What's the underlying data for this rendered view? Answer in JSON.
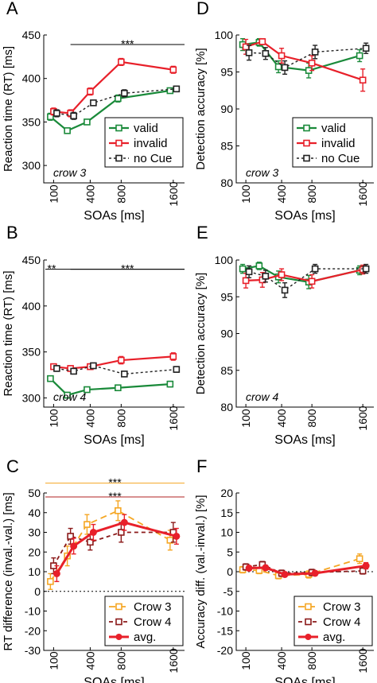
{
  "colors": {
    "valid": "#1a8a3a",
    "invalid": "#e8202a",
    "no_cue": "#222222",
    "crow3": "#f5a623",
    "crow4": "#8b1a1a",
    "avg": "#e8202a",
    "sig_orange": "#f5a623",
    "sig_red": "#b22222"
  },
  "chart_data": [
    {
      "panel": "A",
      "type": "line",
      "ylabel": "Reaction time (RT) [ms]",
      "xlabel": "SOAs [ms]",
      "x": [
        100,
        200,
        400,
        800,
        1600
      ],
      "xticks": [
        100,
        400,
        800,
        1600
      ],
      "ylim": [
        280,
        450
      ],
      "yticks": [
        300,
        350,
        400,
        450
      ],
      "annotation": "crow 3",
      "significance": [
        {
          "label": "***",
          "from": 200,
          "to": 1600,
          "y": 439,
          "color": "#000000"
        }
      ],
      "legend": [
        "valid",
        "invalid",
        "no Cue"
      ],
      "series": [
        {
          "name": "valid",
          "values": [
            356,
            340,
            350,
            377,
            386
          ],
          "err": [
            4,
            3,
            3,
            4,
            3
          ]
        },
        {
          "name": "invalid",
          "values": [
            362,
            360,
            385,
            419,
            410
          ],
          "err": [
            4,
            4,
            4,
            4,
            4
          ]
        },
        {
          "name": "no Cue",
          "values": [
            360,
            357,
            372,
            383,
            388
          ],
          "err": [
            4,
            4,
            3,
            4,
            3
          ]
        }
      ]
    },
    {
      "panel": "D",
      "type": "line",
      "ylabel": "Detection accuracy [%]",
      "xlabel": "SOAs [ms]",
      "x": [
        100,
        200,
        400,
        800,
        1600
      ],
      "xticks": [
        100,
        400,
        800,
        1600
      ],
      "ylim": [
        80,
        100
      ],
      "yticks": [
        80,
        85,
        90,
        95,
        100
      ],
      "annotation": "crow 3",
      "legend": [
        "valid",
        "invalid",
        "no Cue"
      ],
      "series": [
        {
          "name": "valid",
          "values": [
            98.7,
            99.0,
            95.7,
            95.2,
            97.2
          ],
          "err": [
            0.8,
            0.5,
            0.8,
            1.0,
            0.8
          ]
        },
        {
          "name": "invalid",
          "values": [
            98.4,
            99.1,
            97.2,
            96.2,
            93.9
          ],
          "err": [
            1.0,
            0.4,
            1.0,
            1.0,
            1.5
          ]
        },
        {
          "name": "no Cue",
          "values": [
            97.6,
            97.5,
            95.6,
            97.7,
            98.2
          ],
          "err": [
            1.0,
            0.8,
            0.9,
            0.9,
            0.7
          ]
        }
      ]
    },
    {
      "panel": "B",
      "type": "line",
      "ylabel": "Reaction time (RT) [ms]",
      "xlabel": "SOAs [ms]",
      "x": [
        100,
        200,
        400,
        800,
        1600
      ],
      "xticks": [
        100,
        400,
        800,
        1600
      ],
      "ylim": [
        290,
        450
      ],
      "yticks": [
        300,
        350,
        400,
        450
      ],
      "annotation": "crow 4",
      "significance": [
        {
          "label": "**",
          "from": 100,
          "to": 200,
          "y": 440,
          "color": "#000000"
        },
        {
          "label": "***",
          "from": 200,
          "to": 1600,
          "y": 440,
          "color": "#000000"
        }
      ],
      "series": [
        {
          "name": "valid",
          "values": [
            321,
            303,
            309,
            311,
            315
          ],
          "err": [
            3,
            3,
            2,
            3,
            3
          ]
        },
        {
          "name": "invalid",
          "values": [
            334,
            332,
            334,
            341,
            345
          ],
          "err": [
            3,
            3,
            3,
            4,
            4
          ]
        },
        {
          "name": "no Cue",
          "values": [
            332,
            329,
            335,
            326,
            331
          ],
          "err": [
            3,
            3,
            3,
            3,
            3
          ]
        }
      ]
    },
    {
      "panel": "E",
      "type": "line",
      "ylabel": "Detection accuracy [%]",
      "xlabel": "SOAs [ms]",
      "x": [
        100,
        200,
        400,
        800,
        1600
      ],
      "xticks": [
        100,
        400,
        800,
        1600
      ],
      "ylim": [
        80,
        100
      ],
      "yticks": [
        80,
        85,
        90,
        95,
        100
      ],
      "annotation": "crow 4",
      "series": [
        {
          "name": "valid",
          "values": [
            98.8,
            99.2,
            97.7,
            97.0,
            98.6
          ],
          "err": [
            0.6,
            0.5,
            0.8,
            0.9,
            0.6
          ]
        },
        {
          "name": "invalid",
          "values": [
            97.2,
            97.3,
            98.0,
            97.1,
            98.7
          ],
          "err": [
            1.0,
            1.0,
            0.8,
            0.9,
            0.6
          ]
        },
        {
          "name": "no Cue",
          "values": [
            98.4,
            97.8,
            95.9,
            98.8,
            98.8
          ],
          "err": [
            0.8,
            0.8,
            1.0,
            0.6,
            0.6
          ]
        }
      ]
    },
    {
      "panel": "C",
      "type": "line",
      "ylabel": "RT difference (inval.-val.) [ms]",
      "xlabel": "SOAs [ms]",
      "x": [
        100,
        200,
        400,
        800,
        1600
      ],
      "xticks": [
        100,
        400,
        800,
        1600
      ],
      "ylim": [
        -30,
        50
      ],
      "yticks": [
        -30,
        -20,
        -10,
        0,
        10,
        20,
        30,
        40,
        50
      ],
      "zero_line": true,
      "significance": [
        {
          "label": "***",
          "from": 100,
          "to": 1600,
          "y": 55,
          "color": "#f5a623"
        },
        {
          "label": "***",
          "from": 100,
          "to": 1600,
          "y": 48,
          "color": "#b22222"
        }
      ],
      "legend": [
        "Crow 3",
        "Crow 4",
        "avg."
      ],
      "series": [
        {
          "name": "Crow 3",
          "values": [
            5,
            18,
            34,
            41,
            26
          ],
          "err": [
            4,
            5,
            5,
            5,
            5
          ]
        },
        {
          "name": "Crow 4",
          "values": [
            13,
            28,
            25,
            30,
            30
          ],
          "err": [
            4,
            4,
            4,
            5,
            5
          ]
        },
        {
          "name": "avg.",
          "values": [
            9,
            23,
            30,
            35,
            28
          ],
          "err": [
            4,
            4,
            4,
            4,
            4
          ]
        }
      ]
    },
    {
      "panel": "F",
      "type": "line",
      "ylabel": "Accuracy diff. (val.-inval.) [%]",
      "xlabel": "SOAs [ms]",
      "x": [
        100,
        200,
        400,
        800,
        1600
      ],
      "xticks": [
        100,
        400,
        800,
        1600
      ],
      "ylim": [
        -20,
        20
      ],
      "yticks": [
        -20,
        -15,
        -10,
        -5,
        0,
        5,
        10,
        15,
        20
      ],
      "zero_line": true,
      "legend": [
        "Crow 3",
        "Crow 4",
        "avg."
      ],
      "series": [
        {
          "name": "Crow 3",
          "values": [
            0.5,
            0.3,
            -1.0,
            -0.7,
            3.3
          ],
          "err": [
            0.8,
            0.8,
            0.8,
            0.9,
            1.2
          ]
        },
        {
          "name": "Crow 4",
          "values": [
            1.2,
            1.8,
            -0.4,
            -0.2,
            0.2
          ],
          "err": [
            0.8,
            0.8,
            0.8,
            0.8,
            0.8
          ]
        },
        {
          "name": "avg.",
          "values": [
            0.9,
            1.0,
            -0.7,
            -0.4,
            1.5
          ],
          "err": [
            0.6,
            0.6,
            0.6,
            0.6,
            0.8
          ]
        }
      ]
    }
  ]
}
